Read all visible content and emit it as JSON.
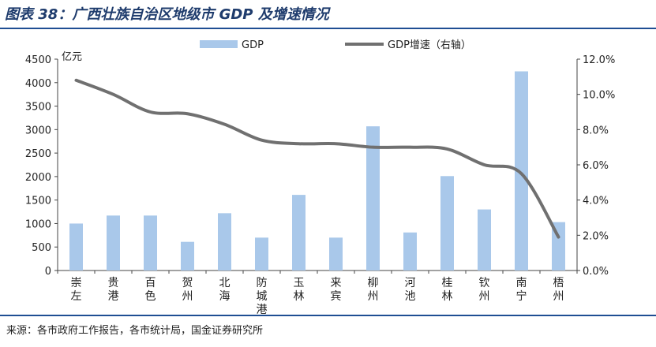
{
  "title": "图表 38：广西壮族自治区地级市 GDP 及增速情况",
  "source": "来源：各市政府工作报告，各市统计局，国金证券研究所",
  "colors": {
    "bar": "#a9c8ea",
    "line": "#707070",
    "rule": "#1f4e93",
    "title": "#1f3c6d"
  },
  "chart_data": {
    "type": "bar",
    "categories": [
      "崇左",
      "贵港",
      "百色",
      "贺州",
      "北海",
      "防城港",
      "玉林",
      "来宾",
      "柳州",
      "河池",
      "桂林",
      "钦州",
      "南宁",
      "梧州"
    ],
    "series": [
      {
        "name": "GDP",
        "type": "bar",
        "axis": "left",
        "values": [
          1000,
          1170,
          1170,
          610,
          1220,
          700,
          1610,
          700,
          3070,
          810,
          2010,
          1300,
          4240,
          1030
        ]
      },
      {
        "name": "GDP增速（右轴）",
        "type": "line",
        "axis": "right",
        "values": [
          10.8,
          10.0,
          9.0,
          8.9,
          8.3,
          7.4,
          7.2,
          7.2,
          7.0,
          7.0,
          6.9,
          6.0,
          5.5,
          1.9
        ]
      }
    ],
    "ylabel": "亿元",
    "ylim": [
      0,
      4500
    ],
    "yticks": [
      "0",
      "500",
      "1000",
      "1500",
      "2000",
      "2500",
      "3000",
      "3500",
      "4000",
      "4500"
    ],
    "y2lim": [
      0,
      12
    ],
    "y2ticks": [
      "0.0%",
      "2.0%",
      "4.0%",
      "6.0%",
      "8.0%",
      "10.0%",
      "12.0%"
    ],
    "legend": "top-center"
  }
}
